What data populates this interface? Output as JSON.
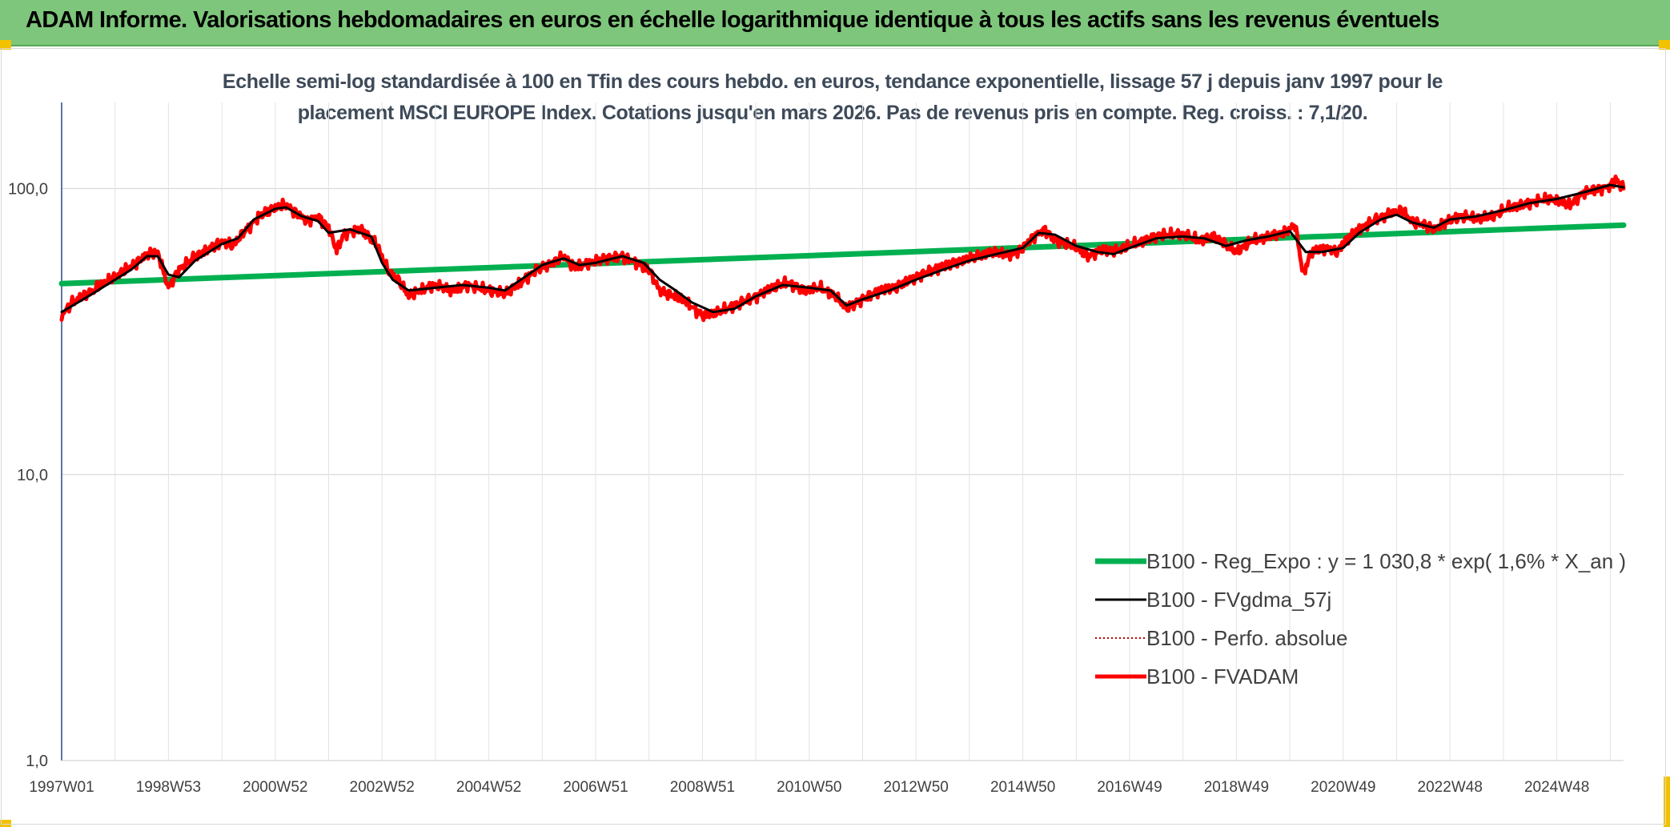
{
  "header": {
    "title": "ADAM Informe. Valorisations hebdomadaires en euros en échelle logarithmique identique à tous les actifs sans les revenus éventuels"
  },
  "colors": {
    "header_bg": "#7dc67b",
    "accent_corner": "#f2c200",
    "trend": "#00b050",
    "fvgdma": "#000000",
    "perfo": "#c00000",
    "fvadam": "#ff0000"
  },
  "chart_data": {
    "type": "line",
    "subtitle_line1": "Echelle semi-log standardisée à 100 en Tfin des cours hebdo. en euros, tendance exponentielle, lissage 57 j depuis janv 1997 pour le",
    "subtitle_line2": "placement MSCI EUROPE Index. Cotations jusqu'en mars 2026. Pas de revenus pris en compte. Reg. croiss. : 7,1/20.",
    "y_scale": "log",
    "ylim": [
      1,
      200
    ],
    "xlim": [
      1997.0,
      2026.25
    ],
    "y_ticks": [
      {
        "value": 1,
        "label": "1,0"
      },
      {
        "value": 10,
        "label": "10,0"
      },
      {
        "value": 100,
        "label": "100,0"
      }
    ],
    "x_ticks": [
      {
        "value": 1997.0,
        "label": "1997W01"
      },
      {
        "value": 1999.0,
        "label": "1998W53"
      },
      {
        "value": 2001.0,
        "label": "2000W52"
      },
      {
        "value": 2003.0,
        "label": "2002W52"
      },
      {
        "value": 2005.0,
        "label": "2004W52"
      },
      {
        "value": 2007.0,
        "label": "2006W51"
      },
      {
        "value": 2009.0,
        "label": "2008W51"
      },
      {
        "value": 2011.0,
        "label": "2010W50"
      },
      {
        "value": 2013.0,
        "label": "2012W50"
      },
      {
        "value": 2015.0,
        "label": "2014W50"
      },
      {
        "value": 2017.0,
        "label": "2016W49"
      },
      {
        "value": 2019.0,
        "label": "2018W49"
      },
      {
        "value": 2021.0,
        "label": "2020W49"
      },
      {
        "value": 2023.0,
        "label": "2022W48"
      },
      {
        "value": 2025.0,
        "label": "2024W48"
      }
    ],
    "grid": true,
    "legend_position": "bottom-right",
    "series": [
      {
        "name": "B100 - Reg_Expo : y = 1 030,8 * exp( 1,6% *  X_an )",
        "key": "trend",
        "style": "solid-thick",
        "points": [
          [
            1997.0,
            46.5
          ],
          [
            2026.25,
            74.5
          ]
        ]
      },
      {
        "name": "B100 - FVgdma_57j",
        "key": "fvgdma",
        "style": "solid-thin",
        "points": [
          [
            1997.0,
            37
          ],
          [
            1997.5,
            42
          ],
          [
            1998.0,
            48
          ],
          [
            1998.3,
            52
          ],
          [
            1998.6,
            58
          ],
          [
            1998.8,
            58
          ],
          [
            1999.0,
            50
          ],
          [
            1999.2,
            49
          ],
          [
            1999.5,
            56
          ],
          [
            2000.0,
            64
          ],
          [
            2000.3,
            67
          ],
          [
            2000.6,
            78
          ],
          [
            2001.0,
            85
          ],
          [
            2001.2,
            86
          ],
          [
            2001.5,
            80
          ],
          [
            2001.8,
            77
          ],
          [
            2002.0,
            70
          ],
          [
            2002.4,
            72
          ],
          [
            2002.8,
            68
          ],
          [
            2003.0,
            55
          ],
          [
            2003.2,
            48
          ],
          [
            2003.5,
            44
          ],
          [
            2004.0,
            45
          ],
          [
            2004.5,
            46
          ],
          [
            2005.0,
            45
          ],
          [
            2005.3,
            44
          ],
          [
            2005.6,
            48
          ],
          [
            2006.0,
            54
          ],
          [
            2006.4,
            57
          ],
          [
            2006.7,
            54
          ],
          [
            2007.0,
            55
          ],
          [
            2007.5,
            58
          ],
          [
            2007.9,
            55
          ],
          [
            2008.2,
            48
          ],
          [
            2008.5,
            44
          ],
          [
            2008.8,
            40
          ],
          [
            2009.2,
            37
          ],
          [
            2009.6,
            38
          ],
          [
            2010.0,
            42
          ],
          [
            2010.5,
            46
          ],
          [
            2011.0,
            45
          ],
          [
            2011.4,
            44
          ],
          [
            2011.7,
            39
          ],
          [
            2012.0,
            41
          ],
          [
            2012.5,
            44
          ],
          [
            2013.0,
            48
          ],
          [
            2013.5,
            52
          ],
          [
            2014.0,
            56
          ],
          [
            2014.5,
            59
          ],
          [
            2015.0,
            62
          ],
          [
            2015.3,
            70
          ],
          [
            2015.6,
            69
          ],
          [
            2016.0,
            63
          ],
          [
            2016.4,
            60
          ],
          [
            2016.7,
            59
          ],
          [
            2017.0,
            62
          ],
          [
            2017.5,
            67
          ],
          [
            2018.0,
            68
          ],
          [
            2018.4,
            67
          ],
          [
            2018.8,
            63
          ],
          [
            2019.2,
            66
          ],
          [
            2019.6,
            68
          ],
          [
            2020.0,
            71
          ],
          [
            2020.3,
            60
          ],
          [
            2020.6,
            60
          ],
          [
            2021.0,
            62
          ],
          [
            2021.3,
            70
          ],
          [
            2021.7,
            78
          ],
          [
            2022.0,
            81
          ],
          [
            2022.3,
            76
          ],
          [
            2022.7,
            73
          ],
          [
            2023.0,
            78
          ],
          [
            2023.5,
            80
          ],
          [
            2024.0,
            84
          ],
          [
            2024.5,
            89
          ],
          [
            2025.0,
            92
          ],
          [
            2025.5,
            97
          ],
          [
            2026.0,
            103
          ],
          [
            2026.25,
            101
          ]
        ]
      },
      {
        "name": "B100 - Perfo. absolue",
        "key": "perfo",
        "style": "dotted",
        "points": []
      },
      {
        "name": "B100 - FVADAM",
        "key": "fvadam",
        "style": "solid-thick",
        "points": [
          [
            1997.0,
            36
          ],
          [
            1997.2,
            40
          ],
          [
            1997.4,
            42
          ],
          [
            1997.6,
            44
          ],
          [
            1997.8,
            47
          ],
          [
            1998.0,
            49
          ],
          [
            1998.2,
            52
          ],
          [
            1998.4,
            55
          ],
          [
            1998.6,
            59
          ],
          [
            1998.8,
            60
          ],
          [
            1998.95,
            48
          ],
          [
            1999.0,
            45
          ],
          [
            1999.2,
            52
          ],
          [
            1999.5,
            58
          ],
          [
            1999.8,
            62
          ],
          [
            2000.0,
            65
          ],
          [
            2000.2,
            63
          ],
          [
            2000.4,
            70
          ],
          [
            2000.7,
            80
          ],
          [
            2001.0,
            86
          ],
          [
            2001.2,
            88
          ],
          [
            2001.4,
            82
          ],
          [
            2001.6,
            77
          ],
          [
            2001.8,
            80
          ],
          [
            2002.0,
            73
          ],
          [
            2002.15,
            61
          ],
          [
            2002.3,
            70
          ],
          [
            2002.6,
            72
          ],
          [
            2002.9,
            64
          ],
          [
            2003.1,
            52
          ],
          [
            2003.3,
            48
          ],
          [
            2003.5,
            42
          ],
          [
            2003.7,
            44
          ],
          [
            2004.0,
            46
          ],
          [
            2004.3,
            44
          ],
          [
            2004.6,
            46
          ],
          [
            2005.0,
            44
          ],
          [
            2005.3,
            43
          ],
          [
            2005.6,
            47
          ],
          [
            2005.9,
            52
          ],
          [
            2006.2,
            55
          ],
          [
            2006.4,
            58
          ],
          [
            2006.6,
            53
          ],
          [
            2006.9,
            55
          ],
          [
            2007.2,
            57
          ],
          [
            2007.5,
            58
          ],
          [
            2007.7,
            56
          ],
          [
            2008.0,
            52
          ],
          [
            2008.2,
            44
          ],
          [
            2008.5,
            42
          ],
          [
            2008.7,
            40
          ],
          [
            2009.0,
            36
          ],
          [
            2009.3,
            37
          ],
          [
            2009.6,
            39
          ],
          [
            2010.0,
            42
          ],
          [
            2010.3,
            45
          ],
          [
            2010.6,
            47
          ],
          [
            2010.9,
            44
          ],
          [
            2011.2,
            45
          ],
          [
            2011.5,
            42
          ],
          [
            2011.7,
            38
          ],
          [
            2012.0,
            41
          ],
          [
            2012.3,
            44
          ],
          [
            2012.6,
            45
          ],
          [
            2013.0,
            49
          ],
          [
            2013.3,
            52
          ],
          [
            2013.6,
            54
          ],
          [
            2014.0,
            57
          ],
          [
            2014.4,
            60
          ],
          [
            2014.8,
            59
          ],
          [
            2015.0,
            62
          ],
          [
            2015.2,
            68
          ],
          [
            2015.4,
            72
          ],
          [
            2015.6,
            66
          ],
          [
            2016.0,
            62
          ],
          [
            2016.2,
            58
          ],
          [
            2016.5,
            61
          ],
          [
            2016.8,
            61
          ],
          [
            2017.0,
            63
          ],
          [
            2017.3,
            66
          ],
          [
            2017.6,
            69
          ],
          [
            2018.0,
            69
          ],
          [
            2018.3,
            66
          ],
          [
            2018.6,
            68
          ],
          [
            2019.0,
            60
          ],
          [
            2019.3,
            66
          ],
          [
            2019.6,
            68
          ],
          [
            2019.9,
            70
          ],
          [
            2020.1,
            75
          ],
          [
            2020.25,
            50
          ],
          [
            2020.4,
            60
          ],
          [
            2020.7,
            62
          ],
          [
            2020.9,
            60
          ],
          [
            2021.0,
            65
          ],
          [
            2021.3,
            72
          ],
          [
            2021.6,
            78
          ],
          [
            2021.9,
            82
          ],
          [
            2022.1,
            84
          ],
          [
            2022.3,
            76
          ],
          [
            2022.5,
            75
          ],
          [
            2022.7,
            72
          ],
          [
            2022.9,
            76
          ],
          [
            2023.2,
            80
          ],
          [
            2023.5,
            79
          ],
          [
            2023.8,
            80
          ],
          [
            2024.1,
            86
          ],
          [
            2024.4,
            88
          ],
          [
            2024.7,
            91
          ],
          [
            2024.9,
            92
          ],
          [
            2025.25,
            88
          ],
          [
            2025.5,
            97
          ],
          [
            2025.8,
            100
          ],
          [
            2026.0,
            102
          ],
          [
            2026.1,
            108
          ],
          [
            2026.25,
            100
          ]
        ]
      }
    ]
  }
}
